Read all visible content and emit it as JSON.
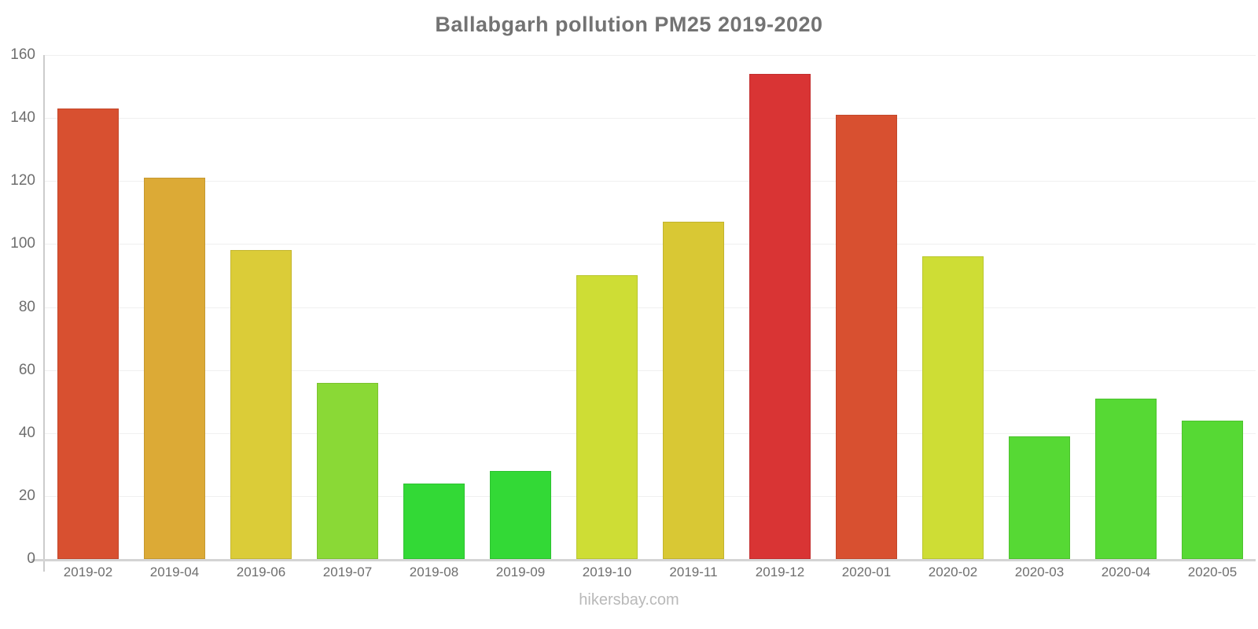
{
  "chart_data": {
    "type": "bar",
    "title": "Ballabgarh pollution PM25 2019-2020",
    "categories": [
      "2019-02",
      "2019-04",
      "2019-06",
      "2019-07",
      "2019-08",
      "2019-09",
      "2019-10",
      "2019-11",
      "2019-12",
      "2020-01",
      "2020-02",
      "2020-03",
      "2020-04",
      "2020-05"
    ],
    "values": [
      143,
      121,
      98,
      56,
      24,
      28,
      90,
      107,
      154,
      141,
      96,
      39,
      51,
      44
    ],
    "bar_colors": [
      "#d85030",
      "#dcaa36",
      "#dbcc38",
      "#8ad936",
      "#33d936",
      "#33d936",
      "#cedd35",
      "#d9c834",
      "#d93434",
      "#d85030",
      "#cedd35",
      "#56d934",
      "#56d934",
      "#56d934"
    ],
    "xlabel": "",
    "ylabel": "",
    "ylim": [
      0,
      160
    ],
    "yticks": [
      0,
      20,
      40,
      60,
      80,
      100,
      120,
      140,
      160
    ],
    "grid": true,
    "legend": "none",
    "footer": "hikersbay.com",
    "colors": {
      "title_text": "#737373",
      "axis_line": "#cccccc",
      "baseline": "#d4d4d4",
      "gridline": "#f0f0f0",
      "tick_text": "#6e6e6e",
      "footer_text": "#b9b9b9",
      "background": "#ffffff"
    }
  }
}
